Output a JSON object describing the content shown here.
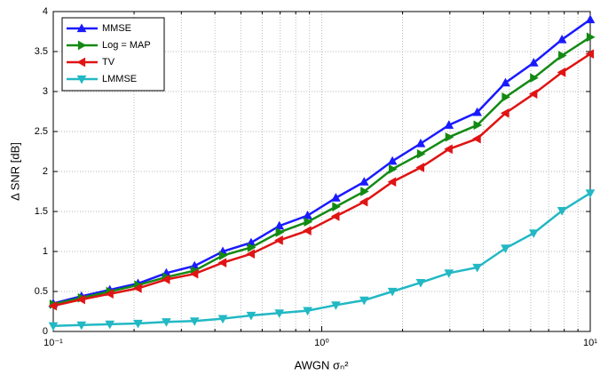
{
  "chart_data": {
    "type": "line",
    "xlabel": "AWGN σₙ²",
    "ylabel": "Δ SNR [dB]",
    "xscale": "log",
    "grid": true,
    "legend": "upper left",
    "x": [
      0.1,
      0.1274,
      0.1624,
      0.2069,
      0.2637,
      0.336,
      0.4281,
      0.5456,
      0.6952,
      0.8859,
      1.1288,
      1.4384,
      1.833,
      2.336,
      2.976,
      3.793,
      4.833,
      6.158,
      7.848,
      10
    ],
    "series": [
      {
        "name": "MMSE",
        "color": "#1a1aff",
        "marker": "^",
        "values": [
          0.35,
          0.44,
          0.52,
          0.6,
          0.73,
          0.82,
          1.0,
          1.11,
          1.32,
          1.45,
          1.67,
          1.87,
          2.13,
          2.35,
          2.58,
          2.74,
          3.11,
          3.36,
          3.65,
          3.9
        ]
      },
      {
        "name": "Log = MAP",
        "color": "#138a13",
        "marker": ">",
        "values": [
          0.34,
          0.42,
          0.5,
          0.58,
          0.68,
          0.76,
          0.95,
          1.05,
          1.24,
          1.37,
          1.56,
          1.75,
          2.03,
          2.22,
          2.43,
          2.58,
          2.93,
          3.17,
          3.45,
          3.68
        ]
      },
      {
        "name": "TV",
        "color": "#e01414",
        "marker": "<",
        "values": [
          0.32,
          0.4,
          0.47,
          0.54,
          0.65,
          0.72,
          0.86,
          0.97,
          1.14,
          1.26,
          1.44,
          1.62,
          1.87,
          2.05,
          2.28,
          2.41,
          2.73,
          2.97,
          3.24,
          3.47
        ]
      },
      {
        "name": "LMMSE",
        "color": "#22b8c4",
        "marker": "v",
        "values": [
          0.07,
          0.08,
          0.09,
          0.1,
          0.12,
          0.13,
          0.16,
          0.2,
          0.23,
          0.26,
          0.33,
          0.39,
          0.5,
          0.61,
          0.73,
          0.8,
          1.04,
          1.23,
          1.51,
          1.73
        ]
      }
    ],
    "xlim": [
      0.1,
      10
    ],
    "xticks": [
      {
        "value": 0.1,
        "label": "10⁻¹"
      },
      {
        "value": 1,
        "label": "10⁰"
      },
      {
        "value": 10,
        "label": "10¹"
      }
    ],
    "xminorticks": [
      0.2,
      0.3,
      0.4,
      0.5,
      0.6,
      0.7,
      0.8,
      0.9,
      2,
      3,
      4,
      5,
      6,
      7,
      8,
      9
    ],
    "ylim": [
      0,
      4
    ],
    "yticks": [
      0,
      0.5,
      1,
      1.5,
      2,
      2.5,
      3,
      3.5,
      4
    ]
  }
}
